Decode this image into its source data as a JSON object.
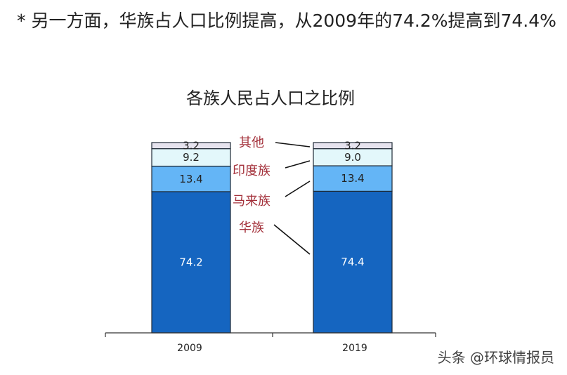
{
  "headline": "* 另一方面，华族占人口比例提高，从2009年的74.2%提高到74.4%",
  "watermark": "头条 @环球情报员",
  "chart_data": {
    "type": "bar",
    "stacked": true,
    "title": "各族人民占人口之比例",
    "categories": [
      "2009",
      "2019"
    ],
    "series": [
      {
        "name": "华族",
        "values": [
          74.2,
          74.4
        ],
        "color": "#1565c0",
        "label_color": "#ffffff"
      },
      {
        "name": "马来族",
        "values": [
          13.4,
          13.4
        ],
        "color": "#64b5f6",
        "label_color": "#222222"
      },
      {
        "name": "印度族",
        "values": [
          9.2,
          9.0
        ],
        "color": "#e3f7fb",
        "label_color": "#222222"
      },
      {
        "name": "其他",
        "values": [
          3.2,
          3.2
        ],
        "color": "#e6e3ee",
        "label_color": "#222222"
      }
    ],
    "ylim": [
      0,
      100
    ],
    "legend_color": "#a3303a",
    "legend_placement": "center, between bars"
  }
}
